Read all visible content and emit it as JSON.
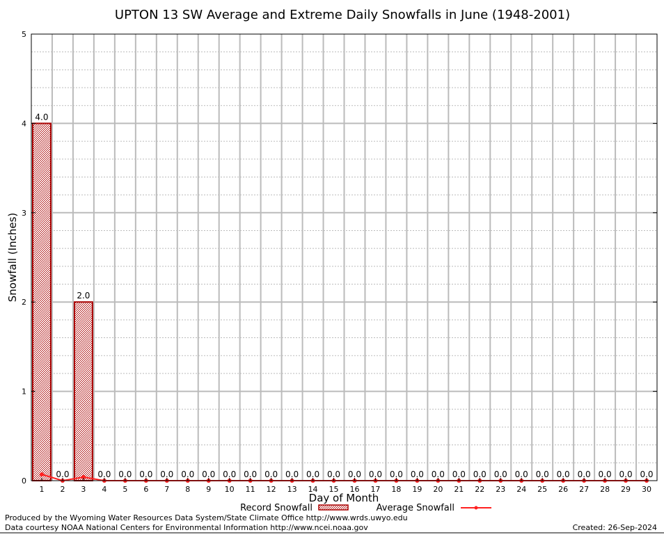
{
  "chart_data": {
    "type": "bar",
    "title": "UPTON 13 SW Average and Extreme Daily Snowfalls in June (1948-2001)",
    "xlabel": "Day of Month",
    "ylabel": "Snowfall (Inches)",
    "ylim": [
      0,
      5
    ],
    "yticks": [
      "0",
      "1",
      "2",
      "3",
      "4",
      "5"
    ],
    "grid": true,
    "legend_position": "bottom",
    "categories": [
      "1",
      "2",
      "3",
      "4",
      "5",
      "6",
      "7",
      "8",
      "9",
      "10",
      "11",
      "12",
      "13",
      "14",
      "15",
      "16",
      "17",
      "18",
      "19",
      "20",
      "21",
      "22",
      "23",
      "24",
      "25",
      "26",
      "27",
      "28",
      "29",
      "30"
    ],
    "series": [
      {
        "name": "Record Snowfall",
        "type": "bar",
        "color": "#aa0000",
        "values": [
          4.0,
          0,
          2.0,
          0,
          0,
          0,
          0,
          0,
          0,
          0,
          0,
          0,
          0,
          0,
          0,
          0,
          0,
          0,
          0,
          0,
          0,
          0,
          0,
          0,
          0,
          0,
          0,
          0,
          0,
          0
        ],
        "labels": [
          "4.0",
          "0.0",
          "2.0",
          "0.0",
          "0.0",
          "0.0",
          "0.0",
          "0.0",
          "0.0",
          "0.0",
          "0.0",
          "0.0",
          "0.0",
          "0.0",
          "0.0",
          "0.0",
          "0.0",
          "0.0",
          "0.0",
          "0.0",
          "0.0",
          "0.0",
          "0.0",
          "0.0",
          "0.0",
          "0.0",
          "0.0",
          "0.0",
          "0.0",
          "0.0"
        ]
      },
      {
        "name": "Average Snowfall",
        "type": "line",
        "color": "#ff2020",
        "values": [
          0.07,
          0,
          0.04,
          0,
          0,
          0,
          0,
          0,
          0,
          0,
          0,
          0,
          0,
          0,
          0,
          0,
          0,
          0,
          0,
          0,
          0,
          0,
          0,
          0,
          0,
          0,
          0,
          0,
          0,
          0
        ]
      }
    ]
  },
  "footer": {
    "produced": "Produced by the Wyoming Water Resources Data System/State Climate Office http://www.wrds.uwyo.edu",
    "courtesy": "Data courtesy NOAA National Centers for Environmental Information http://www.ncei.noaa.gov",
    "created": "Created: 26-Sep-2024"
  }
}
